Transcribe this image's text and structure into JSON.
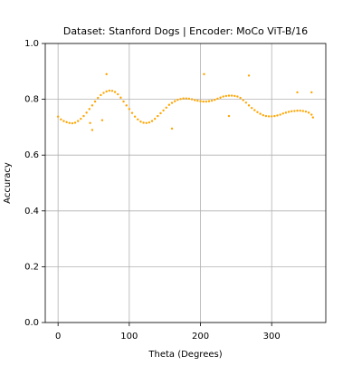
{
  "chart_data": {
    "type": "scatter",
    "title": "Dataset: Stanford Dogs | Encoder: MoCo ViT-B/16",
    "xlabel": "Theta (Degrees)",
    "ylabel": "Accuracy",
    "color": "#ffa500",
    "grid": true,
    "xlim": [
      -18,
      376
    ],
    "ylim": [
      0,
      1
    ],
    "xticks": [
      0,
      100,
      200,
      300
    ],
    "yticks": [
      {
        "value": 0,
        "label": "0.0"
      },
      {
        "value": 0.2,
        "label": "0.2"
      },
      {
        "value": 0.4,
        "label": "0.4"
      },
      {
        "value": 0.6,
        "label": "0.6"
      },
      {
        "value": 0.8,
        "label": "0.8"
      },
      {
        "value": 1,
        "label": "1.0"
      }
    ],
    "x": [
      0,
      4,
      8,
      12,
      16,
      20,
      24,
      28,
      32,
      36,
      40,
      44,
      48,
      52,
      56,
      60,
      64,
      68,
      72,
      76,
      80,
      84,
      88,
      92,
      96,
      100,
      104,
      108,
      112,
      116,
      120,
      124,
      128,
      132,
      136,
      140,
      144,
      148,
      152,
      156,
      160,
      164,
      168,
      172,
      176,
      180,
      184,
      188,
      192,
      196,
      200,
      204,
      208,
      212,
      216,
      220,
      224,
      228,
      232,
      236,
      240,
      244,
      248,
      252,
      256,
      260,
      264,
      268,
      272,
      276,
      280,
      284,
      288,
      292,
      296,
      300,
      304,
      308,
      312,
      316,
      320,
      324,
      328,
      332,
      336,
      340,
      344,
      348,
      352,
      356,
      45,
      48,
      62,
      68,
      160,
      205,
      240,
      268,
      336,
      356,
      358
    ],
    "y": [
      0.738,
      0.728,
      0.722,
      0.718,
      0.715,
      0.714,
      0.716,
      0.722,
      0.73,
      0.74,
      0.752,
      0.765,
      0.778,
      0.792,
      0.805,
      0.815,
      0.823,
      0.828,
      0.831,
      0.83,
      0.826,
      0.818,
      0.806,
      0.792,
      0.778,
      0.765,
      0.751,
      0.738,
      0.728,
      0.72,
      0.716,
      0.715,
      0.717,
      0.722,
      0.73,
      0.74,
      0.75,
      0.76,
      0.77,
      0.78,
      0.787,
      0.793,
      0.798,
      0.801,
      0.803,
      0.803,
      0.802,
      0.8,
      0.797,
      0.795,
      0.793,
      0.792,
      0.792,
      0.793,
      0.795,
      0.798,
      0.802,
      0.806,
      0.81,
      0.812,
      0.813,
      0.813,
      0.812,
      0.81,
      0.805,
      0.797,
      0.788,
      0.778,
      0.769,
      0.761,
      0.754,
      0.748,
      0.743,
      0.74,
      0.739,
      0.739,
      0.74,
      0.742,
      0.745,
      0.749,
      0.752,
      0.755,
      0.757,
      0.758,
      0.759,
      0.759,
      0.758,
      0.756,
      0.752,
      0.745,
      0.715,
      0.69,
      0.725,
      0.89,
      0.695,
      0.89,
      0.74,
      0.885,
      0.825,
      0.825,
      0.735
    ]
  }
}
